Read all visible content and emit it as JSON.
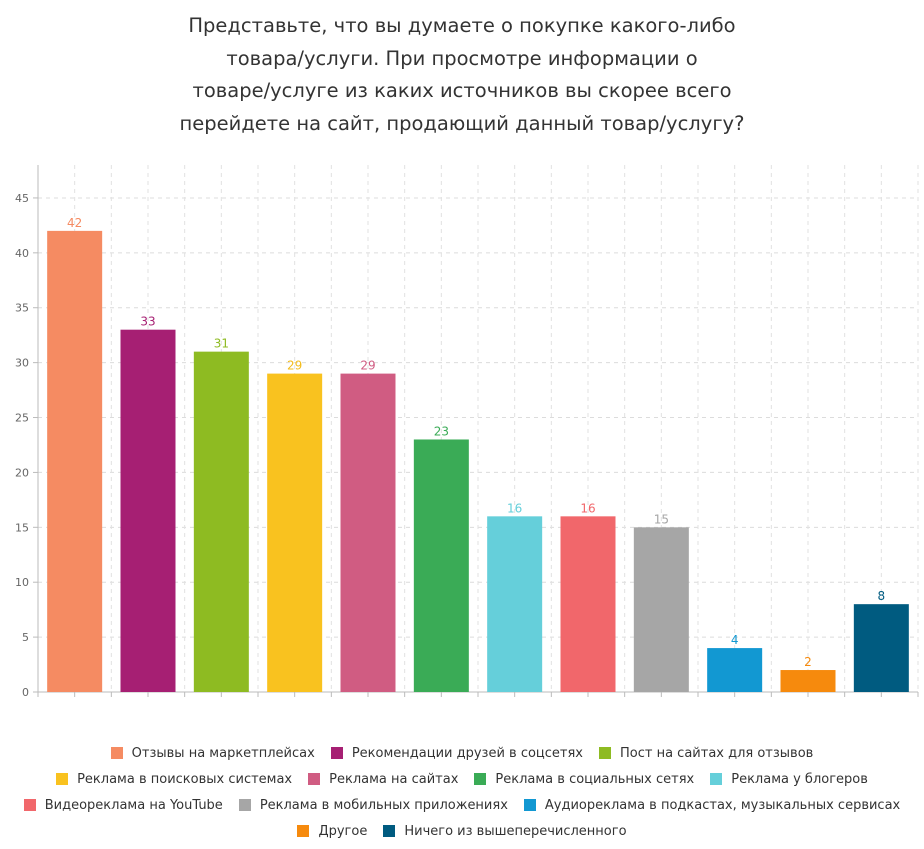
{
  "chart_data": {
    "type": "bar",
    "title_lines": [
      "Представьте, что вы думаете о покупке какого-либо",
      "товара/услуги. При просмотре информации о",
      "товаре/услуге из каких источников вы скорее всего",
      "перейдете на сайт, продающий данный товар/услугу?"
    ],
    "categories": [
      "Отзывы на маркетплейсах",
      "Рекомендации друзей в соцсетях",
      "Пост на сайтах для отзывов",
      "Реклама в поисковых системах",
      "Реклама на сайтах",
      "Реклама в социальных сетях",
      "Реклама у блогеров",
      "Видеореклама на YouTube",
      "Реклама в мобильных приложениях",
      "Аудиореклама в подкастах, музыкальных сервисах",
      "Другое",
      "Ничего из вышеперечисленного"
    ],
    "values": [
      42,
      33,
      31,
      29,
      29,
      23,
      16,
      16,
      15,
      4,
      2,
      8
    ],
    "colors": [
      "#f58b62",
      "#a61f73",
      "#8ebb22",
      "#f9c21f",
      "#d05c82",
      "#3aab56",
      "#65cfda",
      "#f1676b",
      "#a6a6a6",
      "#1298d2",
      "#f68a0d",
      "#005b80"
    ],
    "label_colors": [
      "#f58b62",
      "#a61f73",
      "#8ebb22",
      "#f3bc1b",
      "#d05c82",
      "#3aab56",
      "#65cfda",
      "#f1676b",
      "#a6a6a6",
      "#1298d2",
      "#f68a0d",
      "#005b80"
    ],
    "ylim": [
      0,
      48
    ],
    "yticks": [
      0,
      5,
      10,
      15,
      20,
      25,
      30,
      35,
      40,
      45
    ],
    "grid": true,
    "legend_position": "bottom",
    "legend_rows": [
      [
        0,
        1,
        2
      ],
      [
        3,
        4,
        5,
        6
      ],
      [
        7,
        8,
        9
      ],
      [
        10,
        11
      ]
    ]
  }
}
